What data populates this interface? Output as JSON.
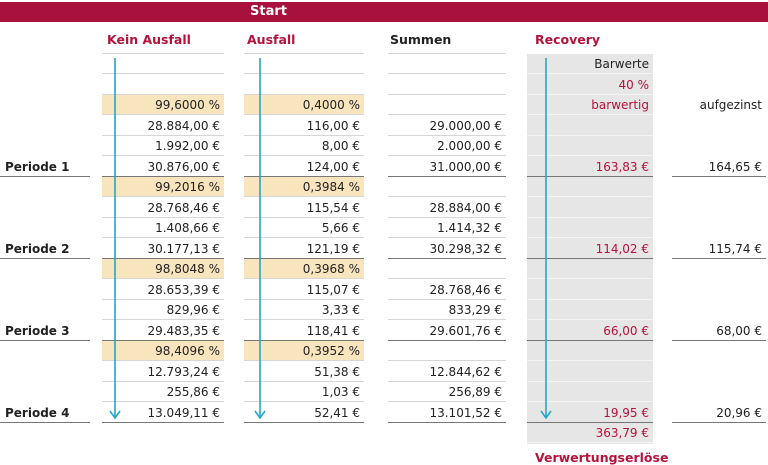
{
  "header": {
    "start": "Start"
  },
  "columns": [
    "Kein Ausfall",
    "Ausfall",
    "Summen",
    "Recovery"
  ],
  "rows": [
    {
      "d": "Barwerte"
    },
    {
      "d": "40 %"
    },
    {
      "a": "99,6000 %",
      "b": "0,4000 %",
      "d": "barwertig",
      "e": "aufgezinst"
    },
    {
      "a": "28.884,00 €",
      "b": "116,00 €",
      "c": "29.000,00 €"
    },
    {
      "a": "1.992,00 €",
      "b": "8,00 €",
      "c": "2.000,00 €"
    },
    {
      "label": "Periode 1",
      "a": "30.876,00 €",
      "b": "124,00 €",
      "c": "31.000,00 €",
      "d": "163,83 €",
      "e": "164,65 €"
    },
    {
      "a": "99,2016 %",
      "b": "0,3984 %"
    },
    {
      "a": "28.768,46 €",
      "b": "115,54 €",
      "c": "28.884,00 €"
    },
    {
      "a": "1.408,66 €",
      "b": "5,66 €",
      "c": "1.414,32 €"
    },
    {
      "label": "Periode 2",
      "a": "30.177,13 €",
      "b": "121,19 €",
      "c": "30.298,32 €",
      "d": "114,02 €",
      "e": "115,74 €"
    },
    {
      "a": "98,8048 %",
      "b": "0,3968 %"
    },
    {
      "a": "28.653,39 €",
      "b": "115,07 €",
      "c": "28.768,46 €"
    },
    {
      "a": "829,96 €",
      "b": "3,33 €",
      "c": "833,29 €"
    },
    {
      "label": "Periode 3",
      "a": "29.483,35 €",
      "b": "118,41 €",
      "c": "29.601,76 €",
      "d": "66,00 €",
      "e": "68,00 €"
    },
    {
      "a": "98,4096 %",
      "b": "0,3952 %"
    },
    {
      "a": "12.793,24 €",
      "b": "51,38 €",
      "c": "12.844,62 €"
    },
    {
      "a": "255,86 €",
      "b": "1,03 €",
      "c": "256,89 €"
    },
    {
      "label": "Periode 4",
      "a": "13.049,11 €",
      "b": "52,41 €",
      "c": "13.101,52 €",
      "d": "19,95 €",
      "e": "20,96 €"
    },
    {
      "d": "363,79 €"
    }
  ],
  "footer": "Verwertungserlöse"
}
